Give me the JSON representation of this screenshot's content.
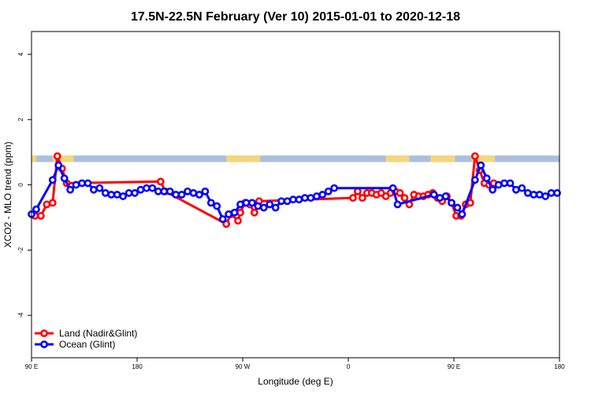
{
  "chart_data": {
    "type": "line",
    "title": "17.5N-22.5N February (Ver 10)   2015-01-01 to 2020-12-18",
    "xlabel": "Longitude (deg E)",
    "ylabel": "XCO2 - MLO trend (ppm)",
    "xlim": [
      0,
      450
    ],
    "ylim": [
      -5.3,
      4.7
    ],
    "x_ticks": [
      {
        "value": 0,
        "label": "90 E"
      },
      {
        "value": 90,
        "label": "180"
      },
      {
        "value": 180,
        "label": "90 W"
      },
      {
        "value": 270,
        "label": "0"
      },
      {
        "value": 360,
        "label": "90 E"
      },
      {
        "value": 450,
        "label": "180"
      }
    ],
    "y_ticks": [
      {
        "value": 4,
        "label": "4"
      },
      {
        "value": 2,
        "label": "2"
      },
      {
        "value": 0,
        "label": "0"
      },
      {
        "value": -2,
        "label": "-2"
      },
      {
        "value": -4,
        "label": "-4"
      }
    ],
    "landmask": {
      "y_range": [
        0.7,
        0.9
      ],
      "ocean_color": "#a9bfdf",
      "land_color": "#f5d67a",
      "land_spans": [
        [
          0,
          4
        ],
        [
          18,
          36
        ],
        [
          166,
          183
        ],
        [
          183,
          195
        ],
        [
          302,
          322
        ],
        [
          340,
          361
        ],
        [
          375,
          395
        ]
      ]
    },
    "series": [
      {
        "name": "Land (Nadir&Glint)",
        "color": "#ff0000",
        "points": [
          [
            3,
            -0.95
          ],
          [
            8,
            -0.95
          ],
          [
            13,
            -0.6
          ],
          [
            18,
            -0.55
          ],
          [
            22,
            0.88
          ],
          [
            26,
            0.5
          ],
          [
            30,
            0.05
          ],
          [
            110,
            0.1
          ],
          [
            114,
            -0.2
          ],
          [
            166,
            -1.2
          ],
          [
            170,
            -0.9
          ],
          [
            176,
            -1.1
          ],
          [
            178,
            -0.85
          ],
          [
            182,
            -0.55
          ],
          [
            186,
            -0.6
          ],
          [
            190,
            -0.85
          ],
          [
            194,
            -0.5
          ],
          [
            274,
            -0.4
          ],
          [
            278,
            -0.2
          ],
          [
            282,
            -0.4
          ],
          [
            286,
            -0.25
          ],
          [
            290,
            -0.25
          ],
          [
            294,
            -0.3
          ],
          [
            298,
            -0.25
          ],
          [
            302,
            -0.35
          ],
          [
            306,
            -0.25
          ],
          [
            310,
            -0.2
          ],
          [
            314,
            -0.25
          ],
          [
            318,
            -0.4
          ],
          [
            322,
            -0.6
          ],
          [
            326,
            -0.3
          ],
          [
            330,
            -0.35
          ],
          [
            334,
            -0.35
          ],
          [
            338,
            -0.3
          ],
          [
            342,
            -0.25
          ],
          [
            346,
            -0.4
          ],
          [
            350,
            -0.5
          ],
          [
            354,
            -0.35
          ],
          [
            358,
            -0.55
          ],
          [
            362,
            -0.95
          ],
          [
            366,
            -0.95
          ],
          [
            370,
            -0.6
          ],
          [
            374,
            -0.55
          ],
          [
            378,
            0.88
          ],
          [
            382,
            0.45
          ],
          [
            386,
            0.05
          ],
          [
            390,
            0.0
          ],
          [
            394,
            0.05
          ]
        ]
      },
      {
        "name": "Ocean (Glint)",
        "color": "#0000ff",
        "points": [
          [
            0,
            -0.9
          ],
          [
            4,
            -0.75
          ],
          [
            18,
            0.15
          ],
          [
            23,
            0.6
          ],
          [
            28,
            0.2
          ],
          [
            33,
            -0.15
          ],
          [
            38,
            0.0
          ],
          [
            43,
            0.05
          ],
          [
            48,
            0.05
          ],
          [
            53,
            -0.15
          ],
          [
            58,
            -0.1
          ],
          [
            63,
            -0.25
          ],
          [
            68,
            -0.3
          ],
          [
            73,
            -0.3
          ],
          [
            78,
            -0.35
          ],
          [
            83,
            -0.25
          ],
          [
            88,
            -0.25
          ],
          [
            93,
            -0.15
          ],
          [
            98,
            -0.1
          ],
          [
            103,
            -0.1
          ],
          [
            108,
            -0.2
          ],
          [
            113,
            -0.2
          ],
          [
            118,
            -0.2
          ],
          [
            123,
            -0.3
          ],
          [
            128,
            -0.3
          ],
          [
            133,
            -0.2
          ],
          [
            138,
            -0.25
          ],
          [
            143,
            -0.3
          ],
          [
            148,
            -0.2
          ],
          [
            153,
            -0.55
          ],
          [
            158,
            -0.65
          ],
          [
            163,
            -1.05
          ],
          [
            168,
            -0.9
          ],
          [
            173,
            -0.85
          ],
          [
            178,
            -0.6
          ],
          [
            183,
            -0.55
          ],
          [
            188,
            -0.55
          ],
          [
            193,
            -0.65
          ],
          [
            198,
            -0.7
          ],
          [
            203,
            -0.6
          ],
          [
            208,
            -0.7
          ],
          [
            213,
            -0.5
          ],
          [
            218,
            -0.5
          ],
          [
            223,
            -0.45
          ],
          [
            228,
            -0.45
          ],
          [
            233,
            -0.4
          ],
          [
            238,
            -0.4
          ],
          [
            243,
            -0.35
          ],
          [
            248,
            -0.3
          ],
          [
            253,
            -0.2
          ],
          [
            258,
            -0.1
          ],
          [
            308,
            -0.1
          ],
          [
            312,
            -0.6
          ],
          [
            343,
            -0.3
          ],
          [
            348,
            -0.4
          ],
          [
            353,
            -0.35
          ],
          [
            358,
            -0.55
          ],
          [
            363,
            -0.7
          ],
          [
            367,
            -0.9
          ],
          [
            378,
            0.15
          ],
          [
            383,
            0.6
          ],
          [
            388,
            0.2
          ],
          [
            393,
            -0.15
          ],
          [
            398,
            0.0
          ],
          [
            403,
            0.05
          ],
          [
            408,
            0.05
          ],
          [
            413,
            -0.15
          ],
          [
            418,
            -0.1
          ],
          [
            423,
            -0.25
          ],
          [
            428,
            -0.3
          ],
          [
            433,
            -0.3
          ],
          [
            438,
            -0.35
          ],
          [
            443,
            -0.25
          ],
          [
            448,
            -0.25
          ]
        ]
      }
    ],
    "legend": {
      "position": "bottom-left"
    }
  }
}
